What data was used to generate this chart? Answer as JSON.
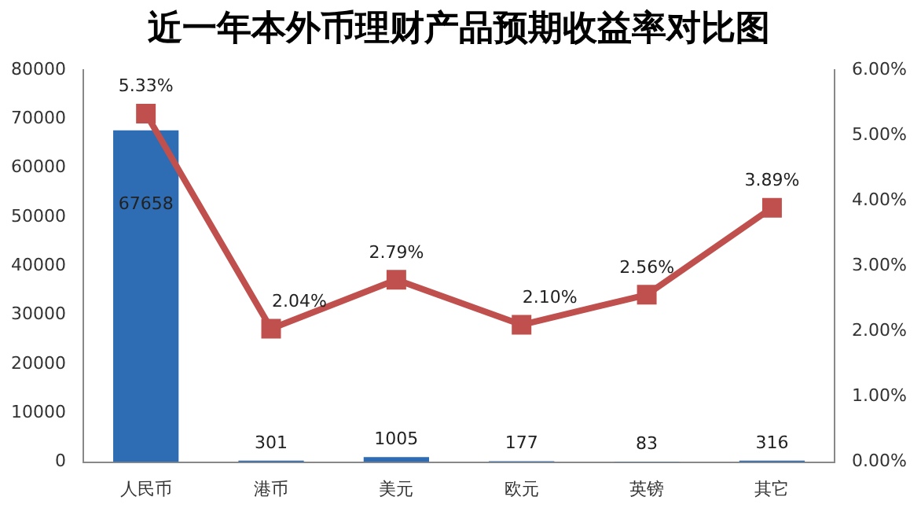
{
  "chart_data": {
    "type": "bar",
    "title": "近一年本外币理财产品预期收益率对比图",
    "categories": [
      "人民币",
      "港币",
      "美元",
      "欧元",
      "英镑",
      "其它"
    ],
    "series": [
      {
        "color": "#2e6db4",
        "values": [
          67658,
          301,
          1005,
          177,
          83,
          316
        ],
        "value_labels": [
          "67658",
          "301",
          "1005",
          "177",
          "83",
          "316"
        ]
      },
      {
        "type": "line",
        "axis": "y2",
        "color": "#c0504d",
        "marker": "square",
        "values": [
          5.33,
          2.04,
          2.79,
          2.1,
          2.56,
          3.89
        ],
        "value_labels": [
          "5.33%",
          "2.04%",
          "2.79%",
          "2.10%",
          "2.56%",
          "3.89%"
        ]
      }
    ],
    "ylim": [
      0,
      80000
    ],
    "yticks": [
      0,
      10000,
      20000,
      30000,
      40000,
      50000,
      60000,
      70000,
      80000
    ],
    "y2lim": [
      0,
      6
    ],
    "y2ticks": [
      {
        "value": 0,
        "label": "0.00%"
      },
      {
        "value": 1,
        "label": "1.00%"
      },
      {
        "value": 2,
        "label": "2.00%"
      },
      {
        "value": 3,
        "label": "3.00%"
      },
      {
        "value": 4,
        "label": "4.00%"
      },
      {
        "value": 5,
        "label": "5.00%"
      },
      {
        "value": 6,
        "label": "6.00%"
      }
    ],
    "grid": false,
    "legend": false
  }
}
